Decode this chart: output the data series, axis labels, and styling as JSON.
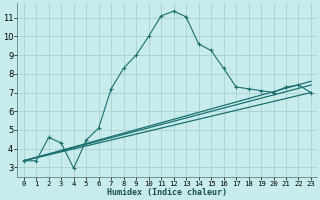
{
  "xlabel": "Humidex (Indice chaleur)",
  "bg_color": "#c8ecec",
  "grid_color": "#b0d4d4",
  "line_color": "#1a7070",
  "xlim": [
    -0.5,
    23.5
  ],
  "ylim": [
    2.5,
    11.8
  ],
  "yticks": [
    3,
    4,
    5,
    6,
    7,
    8,
    9,
    10,
    11
  ],
  "xticks": [
    0,
    1,
    2,
    3,
    4,
    5,
    6,
    7,
    8,
    9,
    10,
    11,
    12,
    13,
    14,
    15,
    16,
    17,
    18,
    19,
    20,
    21,
    22,
    23
  ],
  "series1_x": [
    0,
    1,
    2,
    3,
    4,
    5,
    6,
    7,
    8,
    9,
    10,
    11,
    12,
    13,
    14,
    15,
    16,
    17,
    18,
    19,
    20,
    21,
    22,
    23
  ],
  "series1_y": [
    3.35,
    3.35,
    4.6,
    4.3,
    2.95,
    4.45,
    5.1,
    7.2,
    8.3,
    9.0,
    10.0,
    11.1,
    11.35,
    11.05,
    9.6,
    9.25,
    8.3,
    7.3,
    7.2,
    7.1,
    7.0,
    7.3,
    7.4,
    7.0
  ],
  "series2_x": [
    0,
    23
  ],
  "series2_y": [
    3.35,
    7.0
  ],
  "series3_x": [
    0,
    23
  ],
  "series3_y": [
    3.35,
    7.4
  ],
  "series4_x": [
    0,
    23
  ],
  "series4_y": [
    3.35,
    7.6
  ]
}
